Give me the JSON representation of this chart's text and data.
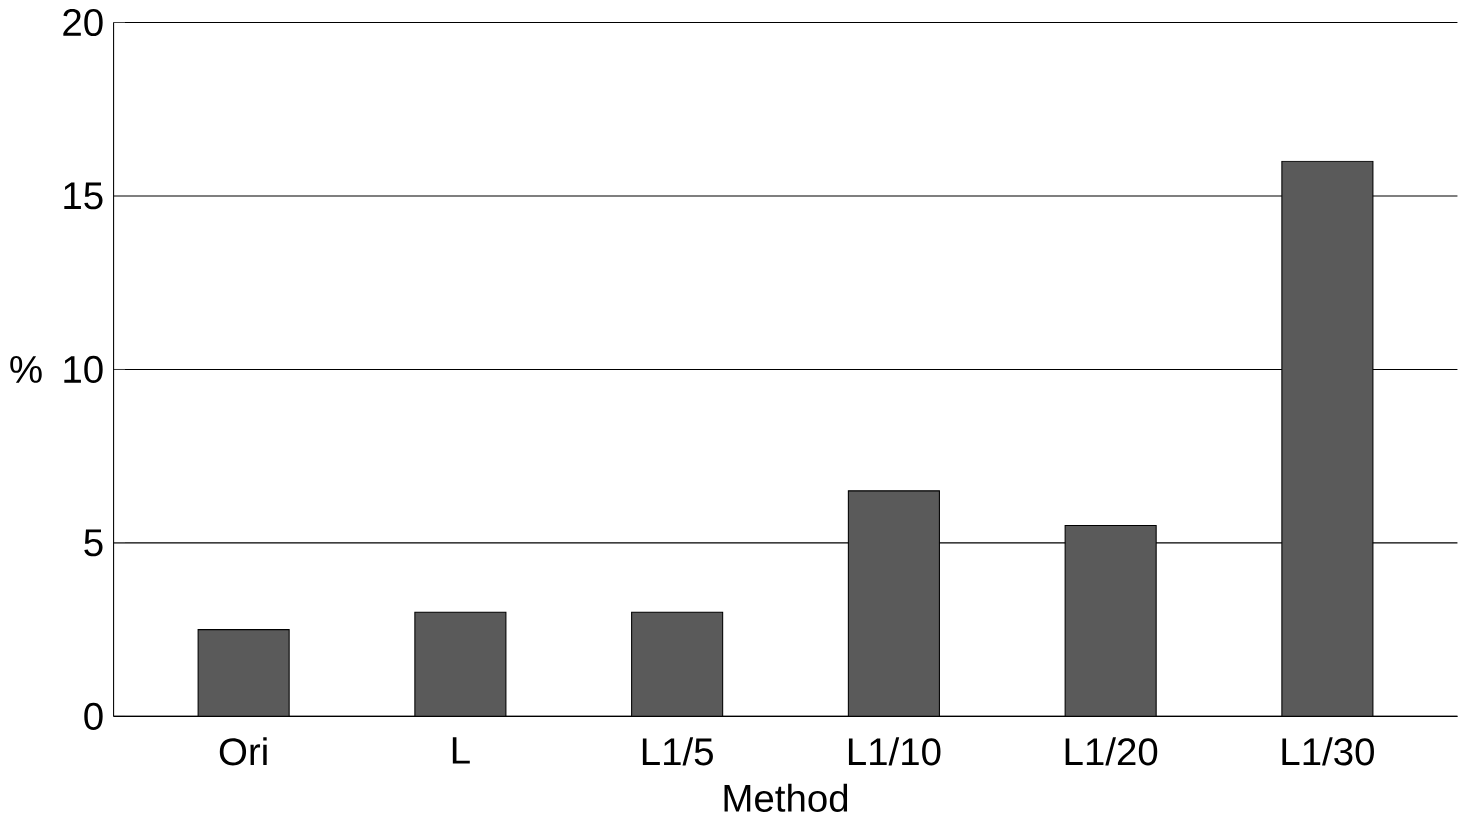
{
  "chart_data": {
    "type": "bar",
    "xlabel": "Method",
    "ylabel": "%",
    "categories": [
      "Ori",
      "L",
      "L1/5",
      "L1/10",
      "L1/20",
      "L1/30"
    ],
    "values": [
      2.5,
      3,
      3,
      6.5,
      5.5,
      16
    ],
    "color": "#5a5a5a",
    "ylim": [
      0,
      20
    ],
    "yticks": [
      0,
      5,
      10,
      15,
      20
    ],
    "grid": "y"
  }
}
